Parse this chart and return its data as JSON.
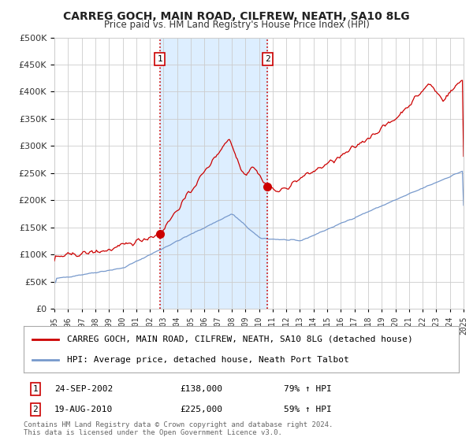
{
  "title": "CARREG GOCH, MAIN ROAD, CILFREW, NEATH, SA10 8LG",
  "subtitle": "Price paid vs. HM Land Registry's House Price Index (HPI)",
  "x_start_year": 1995,
  "x_end_year": 2025,
  "ylim": [
    0,
    500000
  ],
  "yticks": [
    0,
    50000,
    100000,
    150000,
    200000,
    250000,
    300000,
    350000,
    400000,
    450000,
    500000
  ],
  "sale1_date": 2002.73,
  "sale1_price": 138000,
  "sale1_label": "1",
  "sale1_display": "24-SEP-2002",
  "sale1_hpi_change": "79% ↑ HPI",
  "sale2_date": 2010.63,
  "sale2_price": 225000,
  "sale2_label": "2",
  "sale2_display": "19-AUG-2010",
  "sale2_hpi_change": "59% ↑ HPI",
  "red_line_color": "#cc0000",
  "blue_line_color": "#7799cc",
  "highlight_color": "#ddeeff",
  "dashed_line_color": "#cc0000",
  "legend_line1": "CARREG GOCH, MAIN ROAD, CILFREW, NEATH, SA10 8LG (detached house)",
  "legend_line2": "HPI: Average price, detached house, Neath Port Talbot",
  "footer1": "Contains HM Land Registry data © Crown copyright and database right 2024.",
  "footer2": "This data is licensed under the Open Government Licence v3.0.",
  "background_color": "#ffffff",
  "grid_color": "#cccccc"
}
